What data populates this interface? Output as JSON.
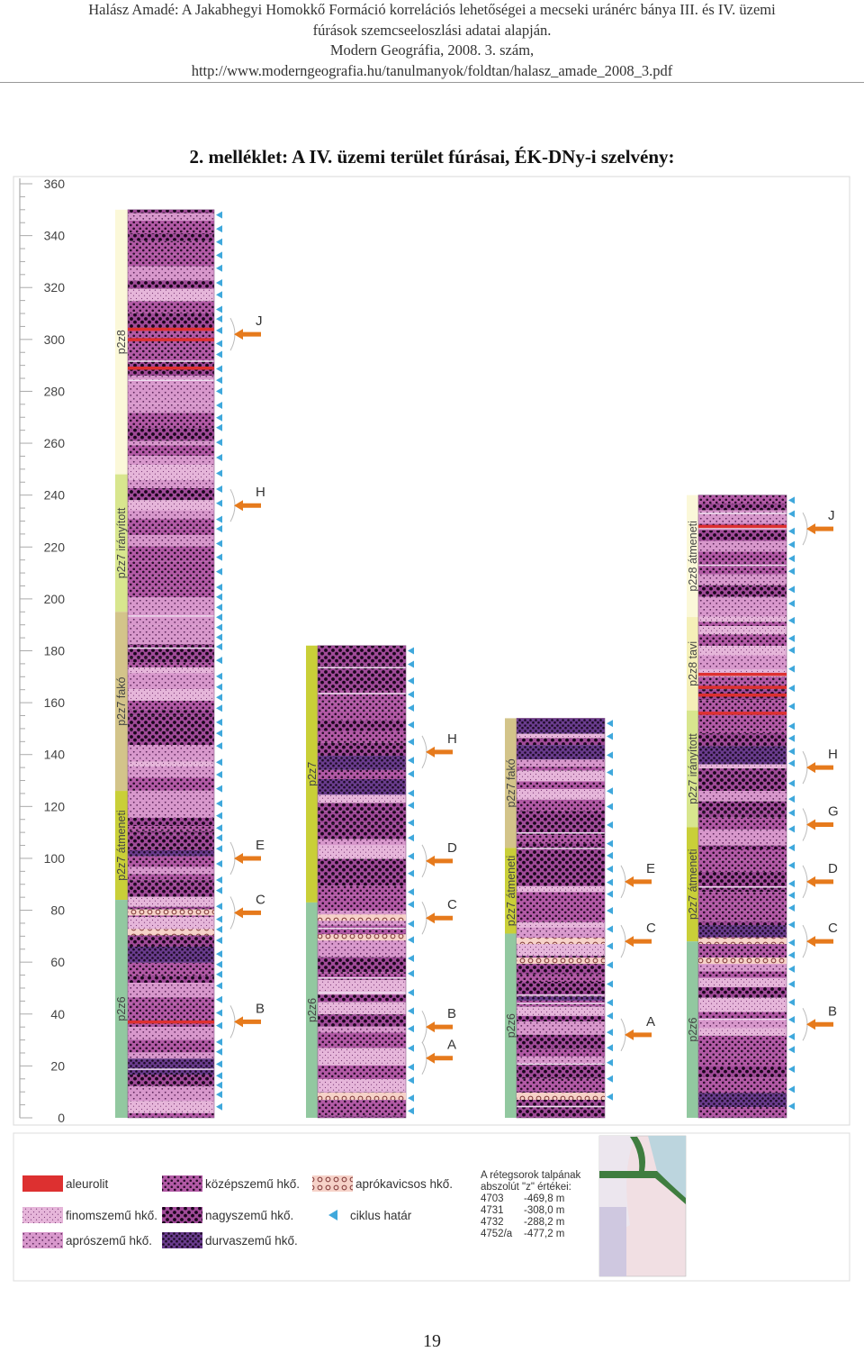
{
  "header": {
    "lines": [
      "Halász Amadé: A Jakabhegyi Homokkő Formáció korrelációs lehetőségei a mecseki uránérc bánya III. és IV. üzemi",
      "fúrások szemcseeloszlási adatai alapján.",
      "Modern Geográfia, 2008. 3. szám,",
      "http://www.moderngeografia.hu/tanulmanyok/foldtan/halasz_amade_2008_3.pdf"
    ]
  },
  "title": "2. melléklet: A IV. üzemi terület fúrásai, ÉK-DNy-i szelvény:",
  "axis": {
    "min": 0,
    "max": 360,
    "ticks": [
      "360",
      "340",
      "320",
      "300",
      "280",
      "260",
      "240",
      "220",
      "200",
      "180",
      "160",
      "140",
      "120",
      "100",
      "80",
      "60",
      "40",
      "20",
      "0"
    ]
  },
  "colors": {
    "aleurolit": "#dd3030",
    "finomszemu": "#e6b6da",
    "aproszemu": "#d898cc",
    "kozepszemu": "#b35aa6",
    "nagyszemu": "#a04a98",
    "durvaszemu": "#6a3c8e",
    "aprokavicsos": "#f6d2c8",
    "ciklus": "#3fa8dc",
    "arrow": "#e67a1c",
    "p2z8": "#fbf8d9",
    "p2z7_iranyitott": "#d8e68e",
    "p2z7_fako": "#d3c48a",
    "p2z7_atmeneti": "#c9cf38",
    "p2z6": "#92c8a0",
    "p2z8_tavi": "#f5f0b8"
  },
  "boreholes": [
    {
      "name": "4703",
      "top": 350,
      "formations": [
        {
          "label": "p2z8",
          "from": 248,
          "to": 350,
          "color": "p2z8"
        },
        {
          "label": "p2z7 irányított",
          "from": 195,
          "to": 248,
          "color": "p2z7_iranyitott"
        },
        {
          "label": "p2z7 fakó",
          "from": 126,
          "to": 195,
          "color": "p2z7_fako"
        },
        {
          "label": "p2z7 átmeneti",
          "from": 84,
          "to": 126,
          "color": "p2z7_atmeneti"
        },
        {
          "label": "p2z6",
          "from": 0,
          "to": 84,
          "color": "p2z6"
        }
      ],
      "markers": [
        {
          "label": "J",
          "value": 302
        },
        {
          "label": "H",
          "value": 236
        },
        {
          "label": "E",
          "value": 100
        },
        {
          "label": "C",
          "value": 79
        },
        {
          "label": "B",
          "value": 37
        }
      ]
    },
    {
      "name": "4731",
      "top": 182,
      "formations": [
        {
          "label": "p2z7",
          "from": 83,
          "to": 182,
          "color": "p2z7_atmeneti"
        },
        {
          "label": "p2z7 átmeneti",
          "from": 83,
          "to": 83,
          "color": "p2z7_atmeneti"
        },
        {
          "label": "p2z6",
          "from": 0,
          "to": 83,
          "color": "p2z6"
        }
      ],
      "markers": [
        {
          "label": "H",
          "value": 141
        },
        {
          "label": "D",
          "value": 99
        },
        {
          "label": "C",
          "value": 77
        },
        {
          "label": "B",
          "value": 35
        },
        {
          "label": "A",
          "value": 23
        }
      ]
    },
    {
      "name": "4732",
      "top": 154,
      "formations": [
        {
          "label": "p2z7 fakó",
          "from": 104,
          "to": 154,
          "color": "p2z7_fako"
        },
        {
          "label": "p2z7 átmeneti",
          "from": 71,
          "to": 104,
          "color": "p2z7_atmeneti"
        },
        {
          "label": "p2z6",
          "from": 0,
          "to": 71,
          "color": "p2z6"
        }
      ],
      "markers": [
        {
          "label": "E",
          "value": 91
        },
        {
          "label": "C",
          "value": 68
        },
        {
          "label": "A",
          "value": 32
        }
      ]
    },
    {
      "name": "4752/a",
      "top": 240,
      "formations": [
        {
          "label": "p2z8 átmeneti",
          "from": 193,
          "to": 240,
          "color": "p2z8"
        },
        {
          "label": "p2z8 tavi",
          "from": 157,
          "to": 193,
          "color": "p2z8_tavi"
        },
        {
          "label": "p2z7 irányított",
          "from": 112,
          "to": 157,
          "color": "p2z7_iranyitott"
        },
        {
          "label": "p2z7 átmeneti",
          "from": 68,
          "to": 112,
          "color": "p2z7_atmeneti"
        },
        {
          "label": "p2z6",
          "from": 0,
          "to": 68,
          "color": "p2z6"
        }
      ],
      "markers": [
        {
          "label": "J",
          "value": 227
        },
        {
          "label": "H",
          "value": 135
        },
        {
          "label": "G",
          "value": 113
        },
        {
          "label": "D",
          "value": 91
        },
        {
          "label": "C",
          "value": 68
        },
        {
          "label": "B",
          "value": 36
        }
      ]
    }
  ],
  "legend": {
    "items": [
      {
        "label": "aleurolit",
        "color": "aleurolit"
      },
      {
        "label": "középszemű hkő.",
        "color": "kozepszemu"
      },
      {
        "label": "aprókavicsos hkő.",
        "color": "aprokavicsos"
      },
      {
        "label": "finomszemű hkő.",
        "color": "finomszemu"
      },
      {
        "label": "nagyszemű hkő.",
        "color": "nagyszemu"
      },
      {
        "label": "ciklus határ",
        "color": "ciklus"
      },
      {
        "label": "aprószemű hkő.",
        "color": "aproszemu"
      },
      {
        "label": "durvaszemű hkő.",
        "color": "durvaszemu"
      }
    ],
    "base_note": {
      "title_lines": [
        "A rétegsorok talpának",
        "abszolút \"z\" értékei:"
      ],
      "rows": [
        {
          "well": "4703",
          "value": "-469,8 m"
        },
        {
          "well": "4731",
          "value": "-308,0 m"
        },
        {
          "well": "4732",
          "value": "-288,2 m"
        },
        {
          "well": "4752/a",
          "value": "-477,2 m"
        }
      ]
    }
  },
  "page_number": "19"
}
